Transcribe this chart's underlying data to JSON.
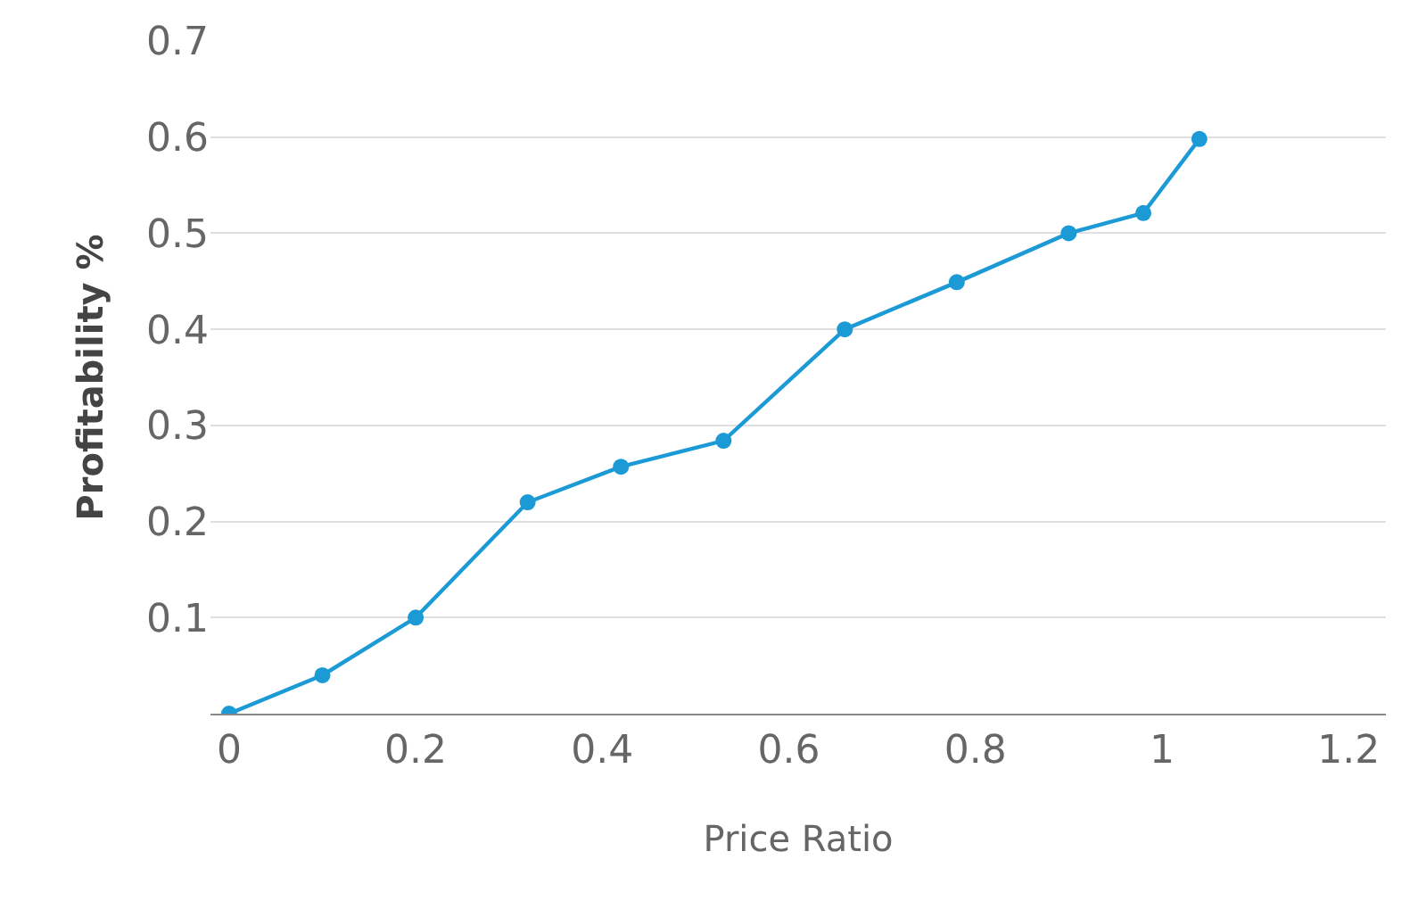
{
  "chart_data": {
    "type": "line",
    "xlabel": "Price Ratio",
    "ylabel": "Profitability %",
    "x": [
      0,
      0.1,
      0.2,
      0.32,
      0.42,
      0.53,
      0.66,
      0.78,
      0.9,
      0.98,
      1.04
    ],
    "series": [
      {
        "color": "#1b9ad6",
        "values": [
          0,
          0.04,
          0.1,
          0.22,
          0.257,
          0.284,
          0.4,
          0.449,
          0.5,
          0.521,
          0.598
        ]
      }
    ],
    "xlim": [
      -0.02,
      1.24
    ],
    "ylim": [
      0,
      0.7
    ],
    "xticks": [
      0,
      0.2,
      0.4,
      0.6,
      0.8,
      1,
      1.2
    ],
    "yticks": [
      0.1,
      0.2,
      0.3,
      0.4,
      0.5,
      0.6,
      0.7
    ],
    "grid": "y",
    "marker": "circle",
    "line_style": "solid",
    "legend": false
  }
}
